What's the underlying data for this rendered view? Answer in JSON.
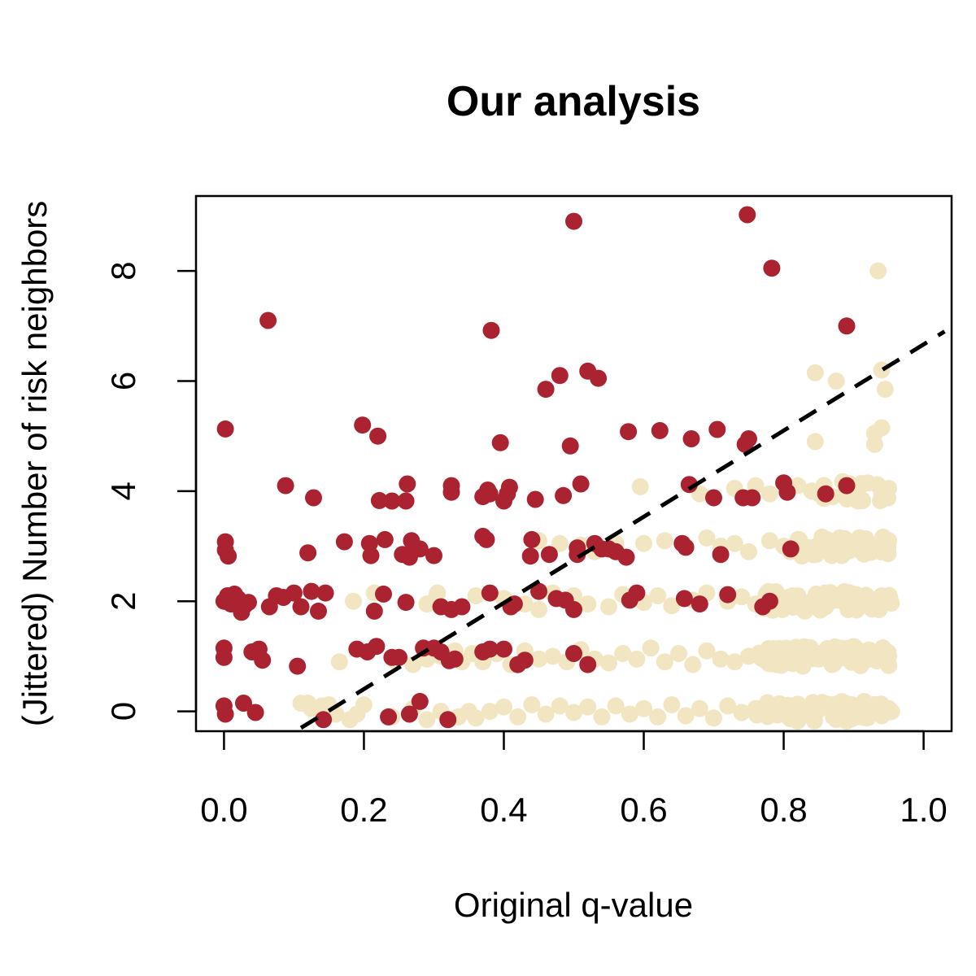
{
  "chart_data": {
    "type": "scatter",
    "title": "Our analysis",
    "xlabel": "Original q-value",
    "ylabel": "(Jittered) Number of risk neighbors",
    "xlim": [
      -0.04,
      1.04
    ],
    "ylim": [
      -0.36,
      9.36
    ],
    "xticks": [
      0.0,
      0.2,
      0.4,
      0.6,
      0.8,
      1.0
    ],
    "xtick_labels": [
      "0.0",
      "0.2",
      "0.4",
      "0.6",
      "0.8",
      "1.0"
    ],
    "yticks": [
      0,
      2,
      4,
      6,
      8
    ],
    "ytick_labels": [
      "0",
      "2",
      "4",
      "6",
      "8"
    ],
    "grid": false,
    "legend": "none",
    "colors": {
      "red_series": "#ab2330",
      "beige_series": "#f2e5c1",
      "reference_line": "#000000"
    },
    "reference_line": {
      "style": "dashed",
      "from": [
        0.11,
        -0.3
      ],
      "to": [
        1.03,
        6.9
      ]
    },
    "series": [
      {
        "color": "#ab2330",
        "points": [
          [
            0.002,
            5.13
          ],
          [
            0.002,
            3.08
          ],
          [
            0.002,
            2.93
          ],
          [
            0.006,
            2.82
          ],
          [
            0.0,
            2.0
          ],
          [
            0.005,
            2.1
          ],
          [
            0.01,
            1.95
          ],
          [
            0.015,
            2.13
          ],
          [
            0.02,
            2.05
          ],
          [
            0.025,
            1.8
          ],
          [
            0.03,
            1.93
          ],
          [
            0.035,
            1.98
          ],
          [
            0.0,
            1.15
          ],
          [
            0.0,
            0.98
          ],
          [
            0.04,
            1.08
          ],
          [
            0.05,
            1.13
          ],
          [
            0.055,
            0.93
          ],
          [
            0.0,
            0.1
          ],
          [
            0.002,
            -0.05
          ],
          [
            0.028,
            0.15
          ],
          [
            0.045,
            -0.02
          ],
          [
            0.063,
            7.1
          ],
          [
            0.088,
            4.1
          ],
          [
            0.065,
            1.9
          ],
          [
            0.075,
            2.1
          ],
          [
            0.085,
            2.07
          ],
          [
            0.1,
            2.15
          ],
          [
            0.11,
            1.9
          ],
          [
            0.125,
            2.18
          ],
          [
            0.135,
            1.82
          ],
          [
            0.145,
            2.15
          ],
          [
            0.105,
            0.82
          ],
          [
            0.12,
            2.88
          ],
          [
            0.128,
            3.88
          ],
          [
            0.142,
            -0.15
          ],
          [
            0.198,
            5.2
          ],
          [
            0.22,
            5.0
          ],
          [
            0.172,
            3.08
          ],
          [
            0.208,
            3.05
          ],
          [
            0.21,
            2.83
          ],
          [
            0.23,
            3.12
          ],
          [
            0.215,
            1.82
          ],
          [
            0.228,
            2.13
          ],
          [
            0.19,
            1.13
          ],
          [
            0.205,
            1.08
          ],
          [
            0.218,
            1.18
          ],
          [
            0.24,
            0.98
          ],
          [
            0.25,
            0.98
          ],
          [
            0.235,
            -0.1
          ],
          [
            0.222,
            3.83
          ],
          [
            0.24,
            3.82
          ],
          [
            0.26,
            3.82
          ],
          [
            0.262,
            4.13
          ],
          [
            0.255,
            2.85
          ],
          [
            0.265,
            2.8
          ],
          [
            0.268,
            3.1
          ],
          [
            0.28,
            2.95
          ],
          [
            0.26,
            1.98
          ],
          [
            0.285,
            1.15
          ],
          [
            0.265,
            -0.05
          ],
          [
            0.28,
            0.18
          ],
          [
            0.3,
            2.83
          ],
          [
            0.31,
            1.9
          ],
          [
            0.325,
            1.85
          ],
          [
            0.34,
            1.9
          ],
          [
            0.3,
            1.15
          ],
          [
            0.31,
            1.08
          ],
          [
            0.322,
            0.92
          ],
          [
            0.33,
            0.95
          ],
          [
            0.32,
            -0.15
          ],
          [
            0.325,
            4.1
          ],
          [
            0.325,
            3.98
          ],
          [
            0.37,
            3.18
          ],
          [
            0.375,
            3.12
          ],
          [
            0.37,
            3.9
          ],
          [
            0.377,
            4.02
          ],
          [
            0.38,
            3.95
          ],
          [
            0.38,
            2.15
          ],
          [
            0.37,
            1.08
          ],
          [
            0.38,
            1.13
          ],
          [
            0.4,
            1.13
          ],
          [
            0.382,
            6.92
          ],
          [
            0.395,
            4.88
          ],
          [
            0.4,
            3.82
          ],
          [
            0.405,
            3.95
          ],
          [
            0.408,
            4.07
          ],
          [
            0.41,
            1.9
          ],
          [
            0.415,
            1.95
          ],
          [
            0.42,
            0.85
          ],
          [
            0.43,
            0.93
          ],
          [
            0.44,
            3.12
          ],
          [
            0.438,
            2.82
          ],
          [
            0.445,
            3.85
          ],
          [
            0.45,
            2.18
          ],
          [
            0.46,
            5.85
          ],
          [
            0.48,
            6.1
          ],
          [
            0.495,
            4.82
          ],
          [
            0.5,
            8.9
          ],
          [
            0.485,
            3.92
          ],
          [
            0.475,
            2.05
          ],
          [
            0.465,
            2.85
          ],
          [
            0.488,
            2.02
          ],
          [
            0.51,
            4.13
          ],
          [
            0.5,
            1.05
          ],
          [
            0.5,
            1.85
          ],
          [
            0.505,
            2.85
          ],
          [
            0.505,
            2.97
          ],
          [
            0.52,
            6.18
          ],
          [
            0.535,
            6.05
          ],
          [
            0.52,
            0.85
          ],
          [
            0.53,
            3.05
          ],
          [
            0.54,
            2.95
          ],
          [
            0.55,
            2.95
          ],
          [
            0.56,
            2.9
          ],
          [
            0.575,
            2.8
          ],
          [
            0.578,
            5.08
          ],
          [
            0.58,
            2.02
          ],
          [
            0.59,
            2.15
          ],
          [
            0.623,
            5.1
          ],
          [
            0.655,
            3.05
          ],
          [
            0.66,
            2.98
          ],
          [
            0.665,
            4.12
          ],
          [
            0.668,
            4.95
          ],
          [
            0.658,
            2.05
          ],
          [
            0.68,
            1.95
          ],
          [
            0.705,
            5.12
          ],
          [
            0.7,
            3.88
          ],
          [
            0.71,
            2.85
          ],
          [
            0.72,
            2.12
          ],
          [
            0.748,
            9.02
          ],
          [
            0.75,
            4.95
          ],
          [
            0.745,
            4.85
          ],
          [
            0.742,
            3.88
          ],
          [
            0.755,
            3.88
          ],
          [
            0.78,
            2.0
          ],
          [
            0.77,
            1.9
          ],
          [
            0.783,
            8.05
          ],
          [
            0.8,
            4.15
          ],
          [
            0.805,
            3.98
          ],
          [
            0.81,
            2.95
          ],
          [
            0.86,
            3.95
          ],
          [
            0.89,
            7.0
          ],
          [
            0.89,
            4.1
          ]
        ]
      },
      {
        "color": "#f2e5c1",
        "points": [
          [
            0.11,
            0.15
          ],
          [
            0.12,
            0.15
          ],
          [
            0.125,
            0.05
          ],
          [
            0.14,
            0.1
          ],
          [
            0.15,
            0.12
          ],
          [
            0.16,
            -0.05
          ],
          [
            0.165,
            0.9
          ],
          [
            0.18,
            -0.15
          ],
          [
            0.19,
            -0.05
          ],
          [
            0.2,
            0.12
          ],
          [
            0.24,
            -0.1
          ],
          [
            0.27,
            0.05
          ],
          [
            0.29,
            -0.15
          ],
          [
            0.31,
            0.0
          ],
          [
            0.185,
            2.0
          ],
          [
            0.215,
            2.15
          ],
          [
            0.245,
            0.92
          ],
          [
            0.27,
            0.85
          ],
          [
            0.29,
            0.95
          ],
          [
            0.305,
            2.15
          ],
          [
            0.31,
            1.0
          ],
          [
            0.33,
            1.1
          ],
          [
            0.34,
            0.9
          ],
          [
            0.355,
            1.05
          ],
          [
            0.29,
            1.95
          ],
          [
            0.3,
            2.0
          ],
          [
            0.335,
            -0.1
          ],
          [
            0.35,
            0.0
          ],
          [
            0.36,
            -0.12
          ],
          [
            0.38,
            0.0
          ],
          [
            0.4,
            0.08
          ],
          [
            0.42,
            -0.1
          ],
          [
            0.44,
            0.12
          ],
          [
            0.46,
            -0.05
          ],
          [
            0.48,
            0.1
          ],
          [
            0.5,
            -0.02
          ],
          [
            0.52,
            0.08
          ],
          [
            0.54,
            -0.1
          ],
          [
            0.56,
            0.1
          ],
          [
            0.58,
            -0.05
          ],
          [
            0.6,
            0.05
          ],
          [
            0.62,
            -0.1
          ],
          [
            0.64,
            0.12
          ],
          [
            0.66,
            -0.08
          ],
          [
            0.68,
            0.05
          ],
          [
            0.7,
            -0.12
          ],
          [
            0.72,
            0.1
          ],
          [
            0.74,
            -0.02
          ],
          [
            0.37,
            0.9
          ],
          [
            0.39,
            1.05
          ],
          [
            0.41,
            0.85
          ],
          [
            0.43,
            1.1
          ],
          [
            0.45,
            0.95
          ],
          [
            0.47,
            1.0
          ],
          [
            0.49,
            0.9
          ],
          [
            0.51,
            1.12
          ],
          [
            0.53,
            0.95
          ],
          [
            0.55,
            0.88
          ],
          [
            0.57,
            1.05
          ],
          [
            0.59,
            0.95
          ],
          [
            0.61,
            1.15
          ],
          [
            0.63,
            0.9
          ],
          [
            0.65,
            1.05
          ],
          [
            0.67,
            0.85
          ],
          [
            0.69,
            1.1
          ],
          [
            0.71,
            0.95
          ],
          [
            0.73,
            0.9
          ],
          [
            0.75,
            1.0
          ],
          [
            0.36,
            2.1
          ],
          [
            0.4,
            2.05
          ],
          [
            0.43,
            1.95
          ],
          [
            0.45,
            1.85
          ],
          [
            0.47,
            2.15
          ],
          [
            0.5,
            2.1
          ],
          [
            0.52,
            1.95
          ],
          [
            0.55,
            1.9
          ],
          [
            0.57,
            2.12
          ],
          [
            0.6,
            1.98
          ],
          [
            0.62,
            2.1
          ],
          [
            0.64,
            1.92
          ],
          [
            0.67,
            2.02
          ],
          [
            0.69,
            2.15
          ],
          [
            0.72,
            2.0
          ],
          [
            0.74,
            2.08
          ],
          [
            0.76,
            1.95
          ],
          [
            0.45,
            3.1
          ],
          [
            0.48,
            3.05
          ],
          [
            0.51,
            3.02
          ],
          [
            0.53,
            2.9
          ],
          [
            0.56,
            3.05
          ],
          [
            0.6,
            3.05
          ],
          [
            0.63,
            3.1
          ],
          [
            0.66,
            3.0
          ],
          [
            0.69,
            3.15
          ],
          [
            0.71,
            3.0
          ],
          [
            0.73,
            3.05
          ],
          [
            0.75,
            2.9
          ],
          [
            0.78,
            3.1
          ],
          [
            0.595,
            4.08
          ],
          [
            0.68,
            3.95
          ],
          [
            0.73,
            4.05
          ],
          [
            0.76,
            4.1
          ],
          [
            0.78,
            3.95
          ],
          [
            0.82,
            4.1
          ],
          [
            0.845,
            6.15
          ],
          [
            0.845,
            4.9
          ],
          [
            0.875,
            6.0
          ],
          [
            0.935,
            8.0
          ],
          [
            0.94,
            6.2
          ],
          [
            0.945,
            5.85
          ],
          [
            0.94,
            5.15
          ],
          [
            0.93,
            5.05
          ],
          [
            0.93,
            4.85
          ],
          [
            0.76,
            0.05
          ],
          [
            0.78,
            -0.05
          ],
          [
            0.8,
            0.1
          ],
          [
            0.82,
            0.0
          ],
          [
            0.84,
            -0.1
          ],
          [
            0.86,
            0.08
          ],
          [
            0.88,
            -0.05
          ],
          [
            0.9,
            0.1
          ],
          [
            0.92,
            0.0
          ],
          [
            0.94,
            -0.08
          ],
          [
            0.95,
            0.05
          ],
          [
            0.77,
            1.05
          ],
          [
            0.79,
            0.9
          ],
          [
            0.81,
            1.1
          ],
          [
            0.83,
            0.95
          ],
          [
            0.85,
            1.05
          ],
          [
            0.87,
            0.9
          ],
          [
            0.89,
            1.1
          ],
          [
            0.91,
            0.95
          ],
          [
            0.93,
            1.05
          ],
          [
            0.95,
            1.0
          ],
          [
            0.78,
            2.05
          ],
          [
            0.8,
            1.95
          ],
          [
            0.82,
            2.1
          ],
          [
            0.84,
            2.0
          ],
          [
            0.86,
            1.9
          ],
          [
            0.88,
            2.1
          ],
          [
            0.9,
            2.0
          ],
          [
            0.92,
            1.95
          ],
          [
            0.94,
            2.1
          ],
          [
            0.95,
            2.0
          ],
          [
            0.8,
            3.0
          ],
          [
            0.82,
            3.1
          ],
          [
            0.84,
            2.9
          ],
          [
            0.86,
            3.05
          ],
          [
            0.88,
            3.15
          ],
          [
            0.9,
            2.95
          ],
          [
            0.92,
            3.05
          ],
          [
            0.94,
            3.0
          ],
          [
            0.95,
            3.1
          ],
          [
            0.84,
            4.0
          ],
          [
            0.87,
            3.9
          ],
          [
            0.9,
            4.05
          ],
          [
            0.92,
            4.15
          ],
          [
            0.94,
            3.95
          ],
          [
            0.95,
            4.05
          ]
        ],
        "dense_bands": [
          {
            "y": 0,
            "x_range": [
              0.76,
              0.955
            ],
            "count": 70
          },
          {
            "y": 1,
            "x_range": [
              0.76,
              0.955
            ],
            "count": 70
          },
          {
            "y": 2,
            "x_range": [
              0.77,
              0.955
            ],
            "count": 60
          },
          {
            "y": 3,
            "x_range": [
              0.8,
              0.955
            ],
            "count": 40
          },
          {
            "y": 4,
            "x_range": [
              0.85,
              0.955
            ],
            "count": 18
          }
        ]
      }
    ]
  }
}
